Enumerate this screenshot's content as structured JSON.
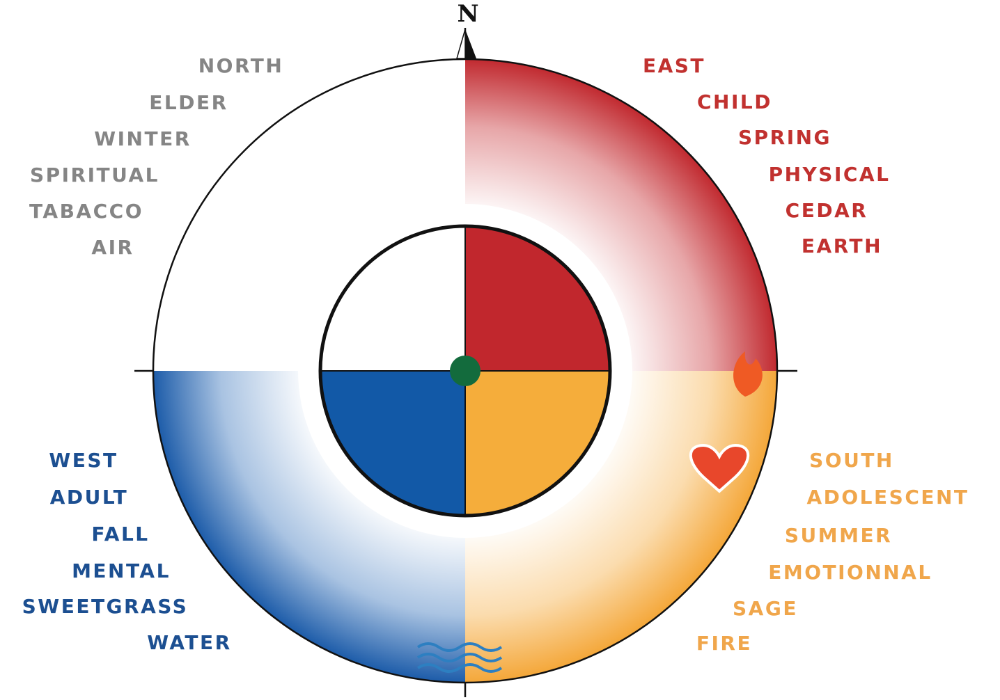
{
  "compass": "N",
  "quadrants": [
    [
      "NORTH",
      "ELDER",
      "WINTER",
      "SPIRITUAL",
      "TABACCO",
      "AIR"
    ],
    [
      "EAST",
      "CHILD",
      "SPRING",
      "PHYSICAL",
      "CEDAR",
      "EARTH"
    ],
    [
      "WEST",
      "ADULT",
      "FALL",
      "MENTAL",
      "SWEETGRASS",
      "WATER"
    ],
    [
      "SOUTH",
      "ADOLESCENT",
      "SUMMER",
      "EMOTIONNAL",
      "SAGE",
      "FIRE"
    ]
  ]
}
